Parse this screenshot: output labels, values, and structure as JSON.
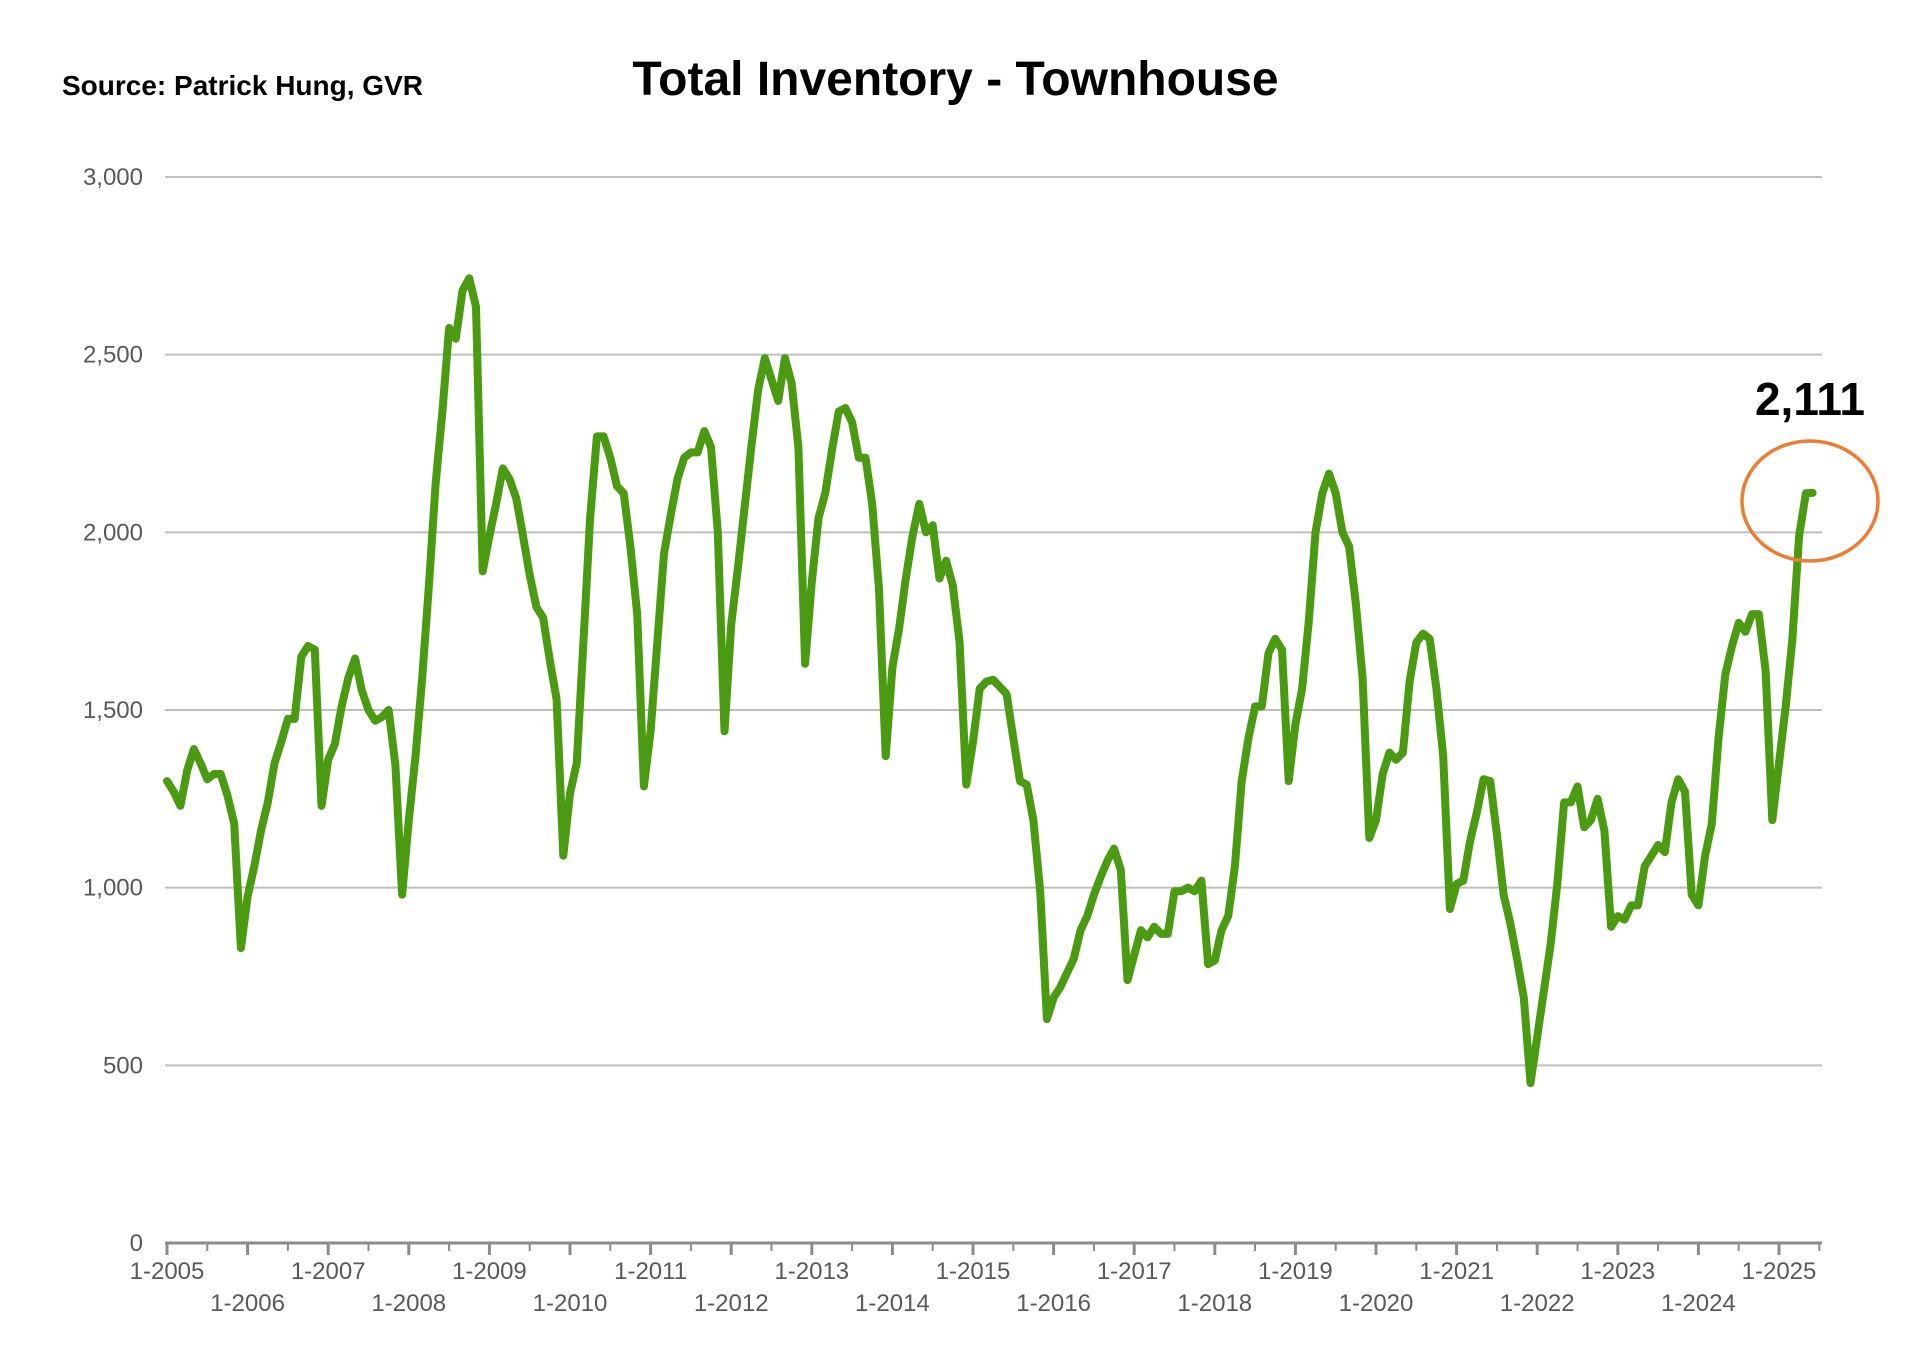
{
  "source": "Source:  Patrick Hung, GVR",
  "chart_data": {
    "type": "line",
    "title": "Total Inventory - Townhouse",
    "xlabel": "",
    "ylabel": "",
    "ylim": [
      0,
      3000
    ],
    "yticks": [
      0,
      500,
      1000,
      1500,
      2000,
      2500,
      3000
    ],
    "ytick_labels": [
      "0",
      "500",
      "1,000",
      "1,500",
      "2,000",
      "2,500",
      "3,000"
    ],
    "xticks": [
      "1-2005",
      "1-2006",
      "1-2007",
      "1-2008",
      "1-2009",
      "1-2010",
      "1-2011",
      "1-2012",
      "1-2013",
      "1-2014",
      "1-2015",
      "1-2016",
      "1-2017",
      "1-2018",
      "1-2019",
      "1-2020",
      "1-2021",
      "1-2022",
      "1-2023",
      "1-2024",
      "1-2025"
    ],
    "grid": true,
    "line_color": "#4a9a12",
    "highlight_color": "#ed7d31",
    "annotation": "2,111",
    "series": [
      {
        "name": "",
        "x_start": "1-2005",
        "values": [
          1300,
          1270,
          1230,
          1330,
          1390,
          1350,
          1305,
          1320,
          1320,
          1260,
          1180,
          830,
          975,
          1060,
          1160,
          1240,
          1350,
          1410,
          1475,
          1475,
          1650,
          1680,
          1670,
          1230,
          1360,
          1405,
          1510,
          1590,
          1645,
          1555,
          1500,
          1470,
          1480,
          1500,
          1345,
          980,
          1190,
          1370,
          1590,
          1850,
          2140,
          2340,
          2575,
          2545,
          2680,
          2715,
          2635,
          1890,
          1990,
          2080,
          2180,
          2150,
          2095,
          1990,
          1880,
          1790,
          1760,
          1640,
          1530,
          1090,
          1265,
          1350,
          1690,
          2040,
          2270,
          2270,
          2210,
          2130,
          2110,
          1960,
          1770,
          1285,
          1440,
          1690,
          1940,
          2050,
          2150,
          2210,
          2225,
          2225,
          2285,
          2240,
          2000,
          1440,
          1740,
          1900,
          2070,
          2240,
          2400,
          2490,
          2430,
          2370,
          2490,
          2420,
          2240,
          1630,
          1860,
          2040,
          2110,
          2230,
          2340,
          2350,
          2310,
          2210,
          2210,
          2080,
          1840,
          1370,
          1620,
          1730,
          1870,
          1990,
          2080,
          2000,
          2020,
          1870,
          1920,
          1850,
          1690,
          1290,
          1410,
          1560,
          1580,
          1585,
          1565,
          1545,
          1420,
          1300,
          1290,
          1190,
          990,
          630,
          690,
          720,
          760,
          800,
          880,
          920,
          980,
          1030,
          1075,
          1110,
          1050,
          740,
          810,
          880,
          860,
          890,
          870,
          870,
          990,
          990,
          1000,
          990,
          1020,
          785,
          795,
          880,
          920,
          1060,
          1300,
          1420,
          1510,
          1510,
          1660,
          1700,
          1670,
          1300,
          1460,
          1560,
          1750,
          2000,
          2110,
          2165,
          2110,
          2000,
          1960,
          1800,
          1590,
          1140,
          1190,
          1320,
          1380,
          1360,
          1380,
          1580,
          1690,
          1715,
          1700,
          1560,
          1370,
          940,
          1010,
          1020,
          1130,
          1210,
          1305,
          1300,
          1150,
          980,
          900,
          800,
          690,
          450,
          580,
          710,
          840,
          1010,
          1240,
          1240,
          1285,
          1170,
          1190,
          1250,
          1160,
          890,
          920,
          910,
          950,
          950,
          1060,
          1090,
          1120,
          1100,
          1240,
          1305,
          1270,
          980,
          950,
          1090,
          1180,
          1420,
          1600,
          1680,
          1745,
          1720,
          1770,
          1770,
          1610,
          1190,
          1350,
          1510,
          1700,
          1990,
          2110,
          2111
        ]
      }
    ]
  }
}
